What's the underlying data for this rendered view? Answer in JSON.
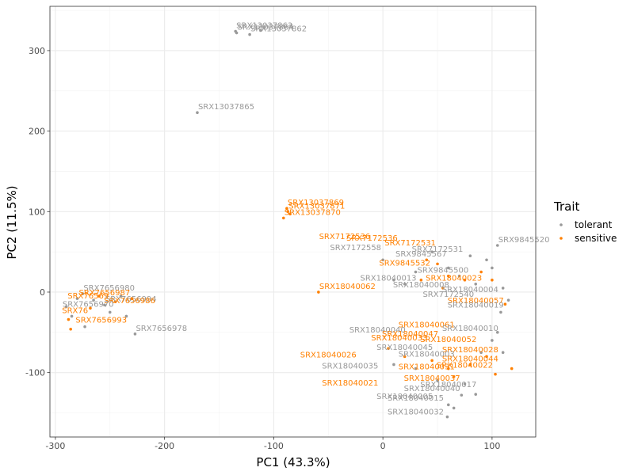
{
  "chart_data": {
    "type": "scatter",
    "xlabel": "PC1 (43.3%)",
    "ylabel": "PC2 (11.5%)",
    "xlim": [
      -305,
      140
    ],
    "ylim": [
      -180,
      355
    ],
    "x_ticks": [
      -300,
      -200,
      -100,
      0,
      100
    ],
    "y_ticks": [
      -100,
      0,
      100,
      200,
      300
    ],
    "x_tick_labels": [
      "-300",
      "-200",
      "-100",
      "0",
      "100"
    ],
    "y_tick_labels": [
      "-100",
      "0",
      "100",
      "200",
      "300"
    ],
    "grid": true,
    "legend": {
      "title": "Trait",
      "placement": "right",
      "entries": [
        {
          "label": "tolerant",
          "color": "#999999"
        },
        {
          "label": "sensitive",
          "color": "#ff8000"
        }
      ]
    },
    "colors": {
      "tolerant": "#999999",
      "sensitive": "#ff8000"
    },
    "series": [
      {
        "name": "tolerant",
        "points": [
          {
            "x": -135,
            "y": 324,
            "label": "SRX13037863"
          },
          {
            "x": -134,
            "y": 322,
            "label": "SRX13037864"
          },
          {
            "x": -122,
            "y": 320,
            "label": "SRX13037862"
          },
          {
            "x": -112,
            "y": 325,
            "label": ""
          },
          {
            "x": -170,
            "y": 223,
            "label": "SRX13037865"
          },
          {
            "x": -227,
            "y": -52,
            "label": "SRX7656978"
          },
          {
            "x": -255,
            "y": -16,
            "label": "SRX7656994"
          },
          {
            "x": -275,
            "y": -2,
            "label": "SRX7656980"
          },
          {
            "x": -290,
            "y": -18,
            "label": ""
          },
          {
            "x": -273,
            "y": -43,
            "label": ""
          },
          {
            "x": -265,
            "y": -10,
            "label": ""
          },
          {
            "x": -250,
            "y": -25,
            "label": ""
          },
          {
            "x": -240,
            "y": -5,
            "label": ""
          },
          {
            "x": -235,
            "y": -30,
            "label": ""
          },
          {
            "x": -280,
            "y": -8,
            "label": ""
          },
          {
            "x": -285,
            "y": -30,
            "label": ""
          },
          {
            "x": 105,
            "y": 58,
            "label": "SRX9845520"
          },
          {
            "x": 95,
            "y": 40,
            "label": ""
          },
          {
            "x": 100,
            "y": 30,
            "label": ""
          },
          {
            "x": 80,
            "y": 45,
            "label": ""
          },
          {
            "x": 60,
            "y": 30,
            "label": ""
          },
          {
            "x": 45,
            "y": 50,
            "label": ""
          },
          {
            "x": 30,
            "y": 25,
            "label": ""
          },
          {
            "x": 20,
            "y": 10,
            "label": ""
          },
          {
            "x": 10,
            "y": 15,
            "label": ""
          },
          {
            "x": 0,
            "y": 40,
            "label": ""
          },
          {
            "x": 70,
            "y": 20,
            "label": ""
          },
          {
            "x": 85,
            "y": 10,
            "label": ""
          },
          {
            "x": 110,
            "y": 5,
            "label": ""
          },
          {
            "x": 115,
            "y": -10,
            "label": ""
          },
          {
            "x": 108,
            "y": -25,
            "label": ""
          },
          {
            "x": 105,
            "y": -50,
            "label": ""
          },
          {
            "x": 100,
            "y": -60,
            "label": ""
          },
          {
            "x": 90,
            "y": -75,
            "label": ""
          },
          {
            "x": 110,
            "y": -75,
            "label": ""
          },
          {
            "x": 85,
            "y": -127,
            "label": ""
          },
          {
            "x": 72,
            "y": -128,
            "label": ""
          },
          {
            "x": 60,
            "y": -140,
            "label": ""
          },
          {
            "x": 65,
            "y": -144,
            "label": ""
          },
          {
            "x": 59,
            "y": -155,
            "label": ""
          },
          {
            "x": 75,
            "y": -114,
            "label": ""
          },
          {
            "x": 50,
            "y": -110,
            "label": ""
          },
          {
            "x": 30,
            "y": -95,
            "label": ""
          },
          {
            "x": 10,
            "y": -90,
            "label": ""
          }
        ]
      },
      {
        "name": "sensitive",
        "points": [
          {
            "x": -88,
            "y": 104,
            "label": "SRX13037869"
          },
          {
            "x": -87,
            "y": 100,
            "label": "SRX13037871"
          },
          {
            "x": -91,
            "y": 92,
            "label": "SRX13037870"
          },
          {
            "x": -85,
            "y": 97,
            "label": ""
          },
          {
            "x": -59,
            "y": 0,
            "label": "SRX18040062"
          },
          {
            "x": -286,
            "y": -46,
            "label": ""
          },
          {
            "x": -288,
            "y": -34,
            "label": ""
          },
          {
            "x": -260,
            "y": -5,
            "label": ""
          },
          {
            "x": -245,
            "y": -12,
            "label": ""
          },
          {
            "x": -230,
            "y": -8,
            "label": ""
          },
          {
            "x": -268,
            "y": -20,
            "label": ""
          },
          {
            "x": 40,
            "y": 40,
            "label": ""
          },
          {
            "x": 50,
            "y": 35,
            "label": ""
          },
          {
            "x": 60,
            "y": 20,
            "label": ""
          },
          {
            "x": 75,
            "y": 15,
            "label": ""
          },
          {
            "x": 90,
            "y": 25,
            "label": ""
          },
          {
            "x": 35,
            "y": 15,
            "label": ""
          },
          {
            "x": 55,
            "y": 5,
            "label": ""
          },
          {
            "x": 100,
            "y": 15,
            "label": ""
          },
          {
            "x": 112,
            "y": -15,
            "label": ""
          },
          {
            "x": 118,
            "y": -95,
            "label": ""
          },
          {
            "x": 103,
            "y": -102,
            "label": ""
          },
          {
            "x": 95,
            "y": -80,
            "label": ""
          },
          {
            "x": 80,
            "y": -90,
            "label": ""
          },
          {
            "x": 60,
            "y": -95,
            "label": ""
          },
          {
            "x": 45,
            "y": -85,
            "label": ""
          },
          {
            "x": 20,
            "y": -80,
            "label": ""
          },
          {
            "x": 5,
            "y": -70,
            "label": ""
          },
          {
            "x": 65,
            "y": -105,
            "label": ""
          }
        ]
      }
    ],
    "overlay_labels": [
      {
        "x": -255,
        "y": -4,
        "text": "SRX7656987",
        "series": "sensitive"
      },
      {
        "x": -270,
        "y": -8,
        "text": "SRX76569",
        "series": "sensitive"
      },
      {
        "x": -232,
        "y": -14,
        "text": "SRX7656986",
        "series": "sensitive"
      },
      {
        "x": -282,
        "y": -26,
        "text": "SRX76",
        "series": "sensitive"
      },
      {
        "x": -258,
        "y": -38,
        "text": "SRX7656993",
        "series": "sensitive"
      },
      {
        "x": -270,
        "y": -18,
        "text": "SRX7656970",
        "series": "tolerant"
      },
      {
        "x": -35,
        "y": 66,
        "text": "SRX7172536",
        "series": "sensitive"
      },
      {
        "x": -10,
        "y": 64,
        "text": "SRX7172536",
        "series": "sensitive"
      },
      {
        "x": 25,
        "y": 58,
        "text": "SRX7172531",
        "series": "sensitive"
      },
      {
        "x": 50,
        "y": 50,
        "text": "SRX7172531",
        "series": "tolerant"
      },
      {
        "x": -25,
        "y": 52,
        "text": "SRX7172558",
        "series": "tolerant"
      },
      {
        "x": 35,
        "y": 44,
        "text": "SRX9845567",
        "series": "tolerant"
      },
      {
        "x": 20,
        "y": 33,
        "text": "SRX9845532",
        "series": "sensitive"
      },
      {
        "x": 55,
        "y": 24,
        "text": "SRX9845500",
        "series": "tolerant"
      },
      {
        "x": 5,
        "y": 14,
        "text": "SRX18040013",
        "series": "tolerant"
      },
      {
        "x": 65,
        "y": 14,
        "text": "SRX18040023",
        "series": "sensitive"
      },
      {
        "x": 35,
        "y": 6,
        "text": "SRX18040008",
        "series": "tolerant"
      },
      {
        "x": 80,
        "y": 0,
        "text": "SRX18040004",
        "series": "tolerant"
      },
      {
        "x": 60,
        "y": -6,
        "text": "SRX7172540",
        "series": "tolerant"
      },
      {
        "x": 85,
        "y": -14,
        "text": "SRX18040057",
        "series": "sensitive"
      },
      {
        "x": 85,
        "y": -19,
        "text": "SRX18040019",
        "series": "tolerant"
      },
      {
        "x": 40,
        "y": -44,
        "text": "SRX18040061",
        "series": "sensitive"
      },
      {
        "x": 80,
        "y": -48,
        "text": "SRX18040010",
        "series": "tolerant"
      },
      {
        "x": -5,
        "y": -50,
        "text": "SRX18040040",
        "series": "tolerant"
      },
      {
        "x": 25,
        "y": -55,
        "text": "SRX18040047",
        "series": "sensitive"
      },
      {
        "x": 15,
        "y": -60,
        "text": "SRX18040033",
        "series": "sensitive"
      },
      {
        "x": 60,
        "y": -62,
        "text": "SRX18040052",
        "series": "sensitive"
      },
      {
        "x": 20,
        "y": -72,
        "text": "SRX18040045",
        "series": "tolerant"
      },
      {
        "x": 80,
        "y": -75,
        "text": "SRX18040028",
        "series": "sensitive"
      },
      {
        "x": -50,
        "y": -81,
        "text": "SRX18040026",
        "series": "sensitive"
      },
      {
        "x": 40,
        "y": -80,
        "text": "SRX18040003",
        "series": "tolerant"
      },
      {
        "x": 80,
        "y": -86,
        "text": "SRX18040044",
        "series": "sensitive"
      },
      {
        "x": -30,
        "y": -95,
        "text": "SRX18040035",
        "series": "tolerant"
      },
      {
        "x": 40,
        "y": -96,
        "text": "SRX18040031",
        "series": "sensitive"
      },
      {
        "x": 75,
        "y": -94,
        "text": "SRX18040022",
        "series": "sensitive"
      },
      {
        "x": 45,
        "y": -110,
        "text": "SRX18040037",
        "series": "sensitive"
      },
      {
        "x": -30,
        "y": -116,
        "text": "SRX18040021",
        "series": "sensitive"
      },
      {
        "x": 60,
        "y": -118,
        "text": "SRX18040017",
        "series": "tolerant"
      },
      {
        "x": 45,
        "y": -123,
        "text": "SRX18040040",
        "series": "tolerant"
      },
      {
        "x": 20,
        "y": -133,
        "text": "SRX18040005",
        "series": "tolerant"
      },
      {
        "x": 30,
        "y": -135,
        "text": "SRX18040015",
        "series": "tolerant"
      },
      {
        "x": 30,
        "y": -152,
        "text": "SRX18040032",
        "series": "tolerant"
      }
    ]
  }
}
